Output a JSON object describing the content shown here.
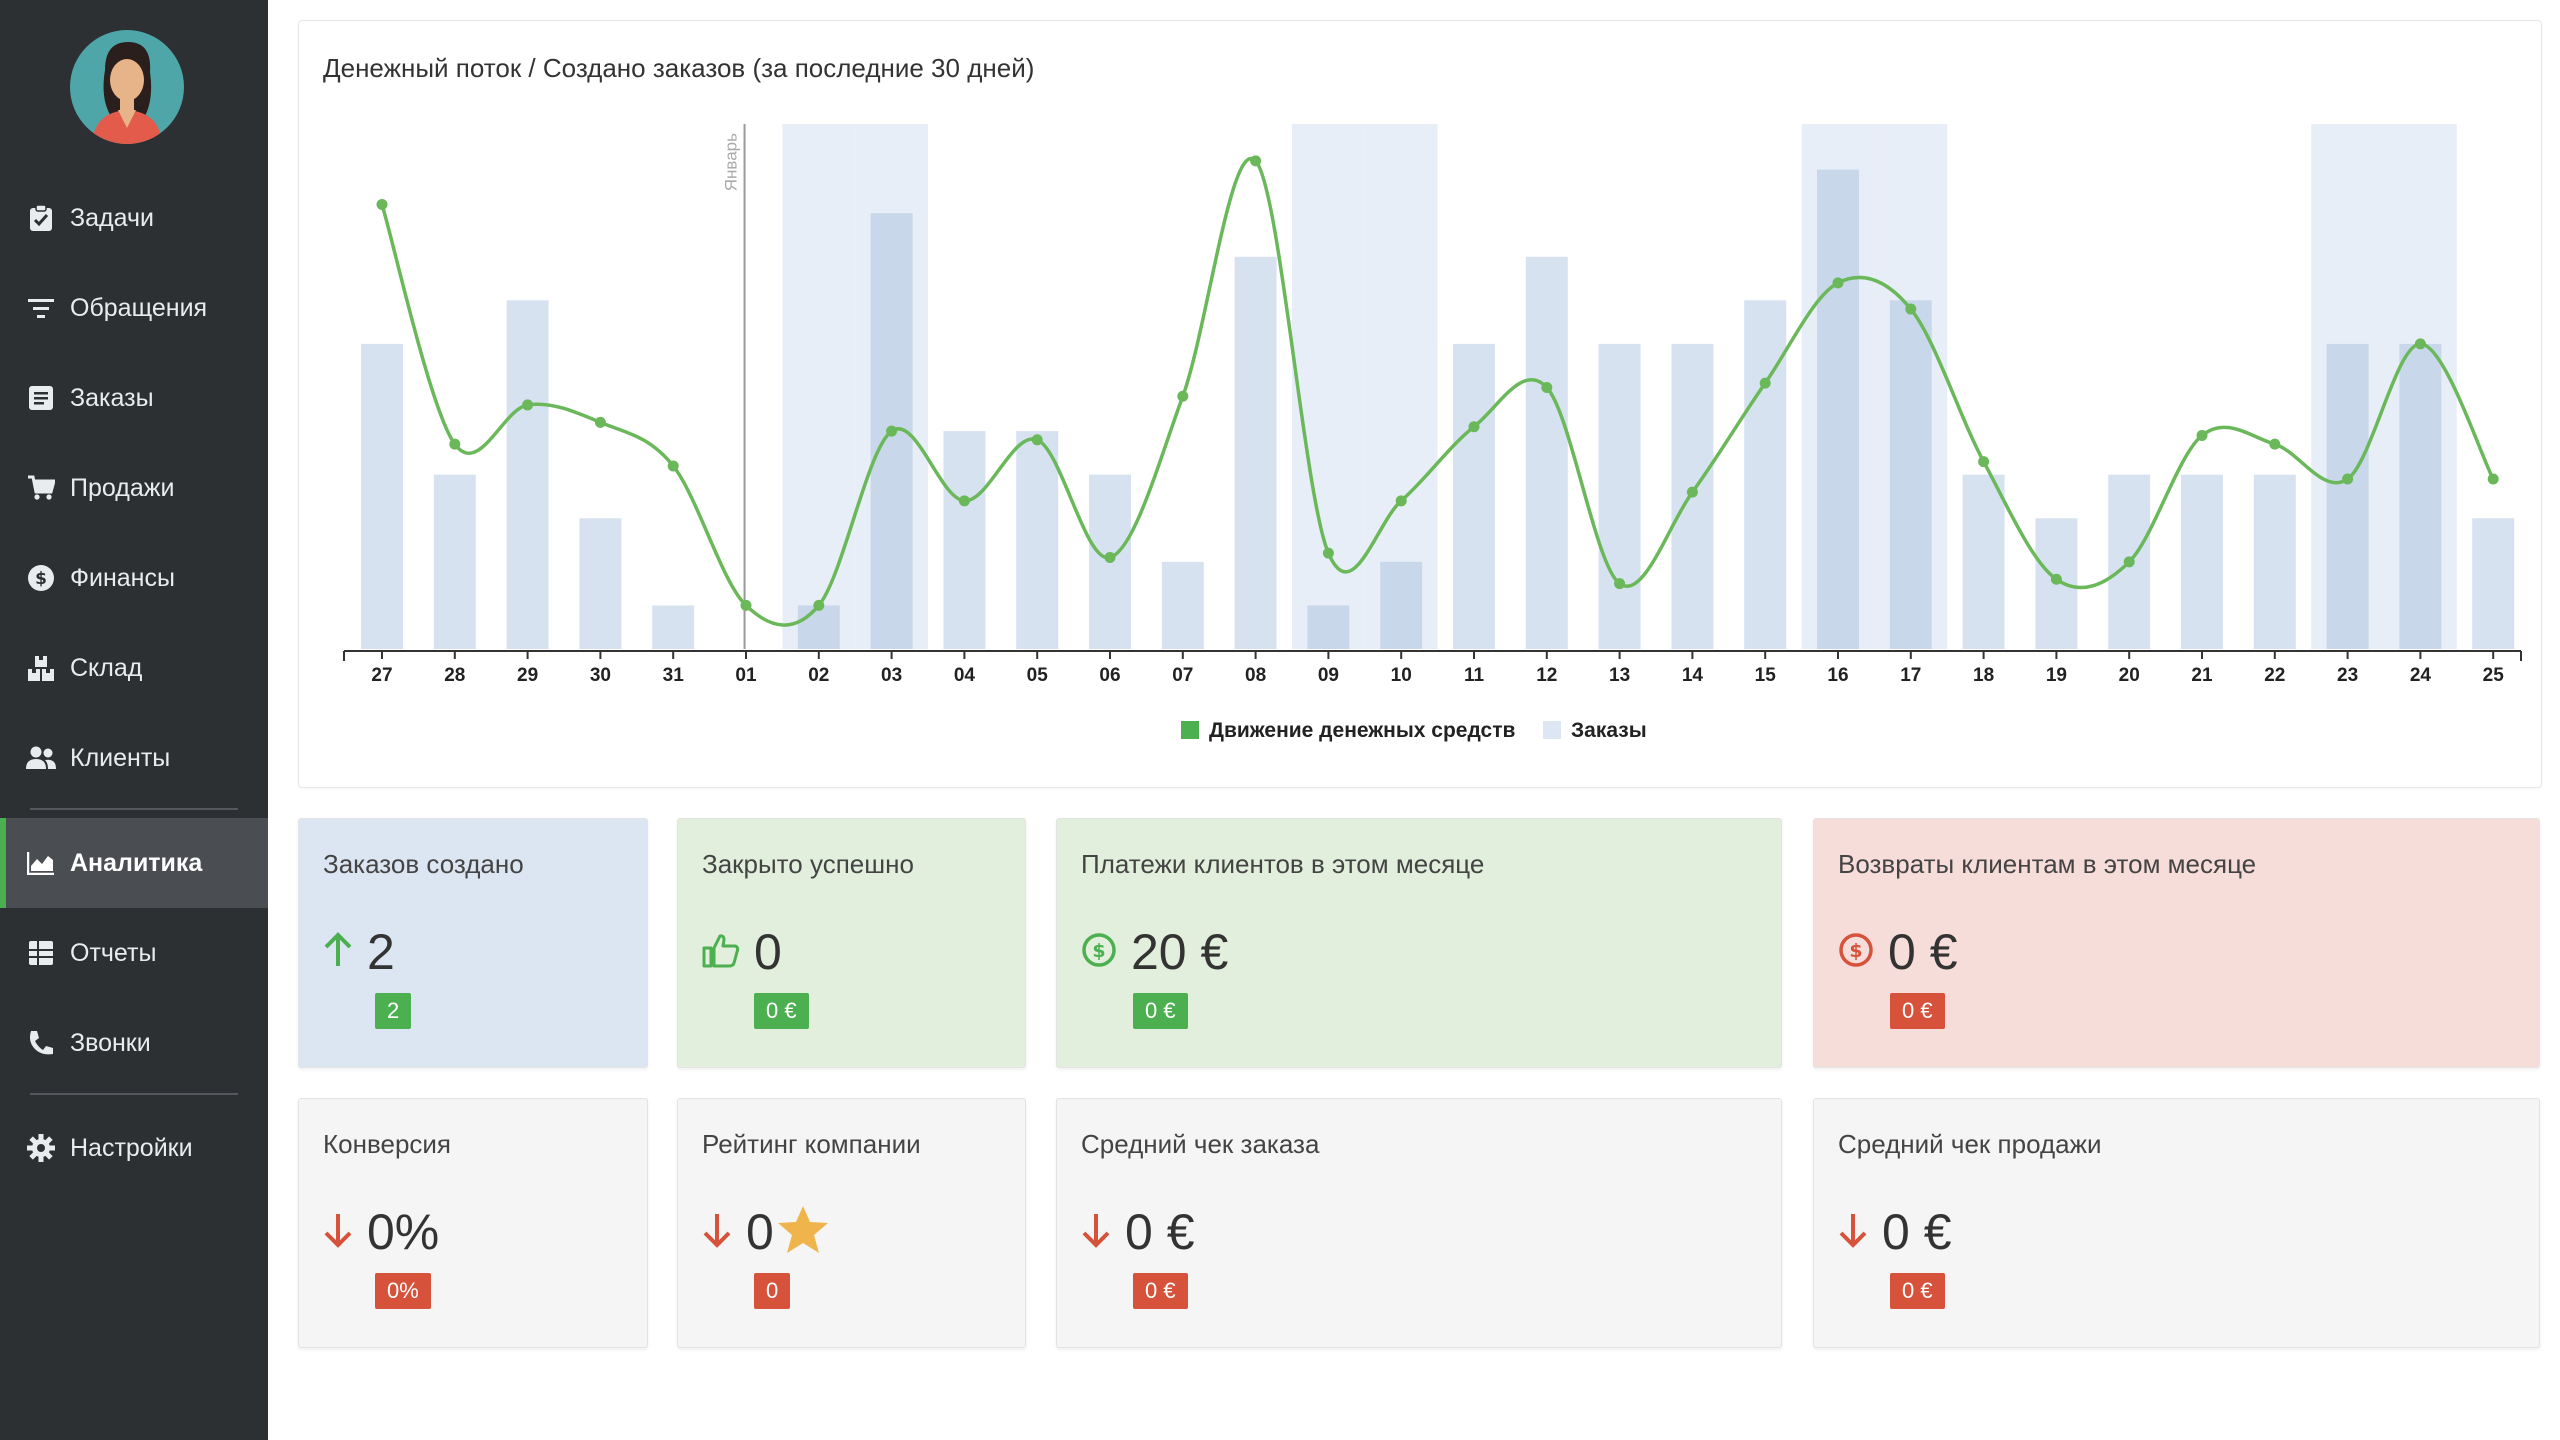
{
  "sidebar": {
    "items": [
      {
        "label": "Задачи",
        "icon": "clipboard-check-icon"
      },
      {
        "label": "Обращения",
        "icon": "filter-icon"
      },
      {
        "label": "Заказы",
        "icon": "order-list-icon"
      },
      {
        "label": "Продажи",
        "icon": "shopping-cart-icon"
      },
      {
        "label": "Финансы",
        "icon": "dollar-circle-icon"
      },
      {
        "label": "Склад",
        "icon": "boxes-icon"
      },
      {
        "label": "Клиенты",
        "icon": "users-icon"
      },
      {
        "label": "Аналитика",
        "icon": "area-chart-icon",
        "active": true
      },
      {
        "label": "Отчеты",
        "icon": "table-icon"
      },
      {
        "label": "Звонки",
        "icon": "phone-icon"
      },
      {
        "label": "Настройки",
        "icon": "gear-icon"
      }
    ]
  },
  "chart": {
    "title": "Денежный поток / Создано заказов (за последние 30 дней)",
    "month_marker": "Январь",
    "legend": {
      "cashflow": "Движение денежных средств",
      "orders": "Заказы"
    }
  },
  "chart_data": {
    "type": "bar",
    "categories": [
      "27",
      "28",
      "29",
      "30",
      "31",
      "01",
      "02",
      "03",
      "04",
      "05",
      "06",
      "07",
      "08",
      "09",
      "10",
      "11",
      "12",
      "13",
      "14",
      "15",
      "16",
      "17",
      "18",
      "19",
      "20",
      "21",
      "22",
      "23",
      "24",
      "25"
    ],
    "series": [
      {
        "name": "Заказы",
        "type": "bar",
        "values": [
          7,
          4,
          8,
          3,
          1,
          0,
          1,
          10,
          5,
          5,
          4,
          2,
          9,
          1,
          2,
          7,
          9,
          7,
          7,
          8,
          11,
          8,
          4,
          3,
          4,
          4,
          4,
          7,
          7,
          3
        ]
      },
      {
        "name": "Движение денежных средств",
        "type": "line",
        "values": [
          10.2,
          4.7,
          5.6,
          5.2,
          4.2,
          1.0,
          1.0,
          5.0,
          3.4,
          4.8,
          2.1,
          5.8,
          11.2,
          2.2,
          3.4,
          5.1,
          6.0,
          1.5,
          3.6,
          6.1,
          8.4,
          7.8,
          4.3,
          1.6,
          2.0,
          4.9,
          4.7,
          3.9,
          7.0,
          3.9
        ]
      }
    ],
    "highlighted_categories": [
      "02",
      "03",
      "09",
      "10",
      "16",
      "17",
      "23",
      "24"
    ],
    "ylim": [
      0,
      12
    ],
    "legend_position": "bottom"
  },
  "cards_row1": [
    {
      "label": "Заказов создано",
      "icon": "arrow-up-icon",
      "value": "2",
      "badge": "2",
      "badge_color": "green",
      "bg": "blue"
    },
    {
      "label": "Закрыто успешно",
      "icon": "thumbs-up-icon",
      "value": "0",
      "badge": "0 €",
      "badge_color": "green",
      "bg": "green"
    },
    {
      "label": "Платежи клиентов в этом месяце",
      "icon": "dollar-circle-green-icon",
      "value": "20 €",
      "badge": "0 €",
      "badge_color": "green",
      "bg": "green"
    },
    {
      "label": "Возвраты клиентам в этом месяце",
      "icon": "dollar-circle-red-icon",
      "value": "0 €",
      "badge": "0 €",
      "badge_color": "red",
      "bg": "red"
    }
  ],
  "cards_row2": [
    {
      "label": "Конверсия",
      "icon": "arrow-down-icon",
      "value": "0%",
      "badge": "0%",
      "badge_color": "red",
      "bg": "grey"
    },
    {
      "label": "Рейтинг компании",
      "icon": "arrow-down-icon",
      "value": "0",
      "badge": "0",
      "badge_color": "red",
      "bg": "grey",
      "extra_icon": "star-icon"
    },
    {
      "label": "Средний чек заказа",
      "icon": "arrow-down-icon",
      "value": "0 €",
      "badge": "0 €",
      "badge_color": "red",
      "bg": "grey"
    },
    {
      "label": "Средний чек продажи",
      "icon": "arrow-down-icon",
      "value": "0 €",
      "badge": "0 €",
      "badge_color": "red",
      "bg": "grey"
    }
  ],
  "colors": {
    "sidebar_bg": "#2d3033",
    "accent_green": "#4caf50",
    "line_green": "#6ab85a",
    "bar_blue": "#d7e2f1",
    "badge_red": "#d6523b"
  }
}
